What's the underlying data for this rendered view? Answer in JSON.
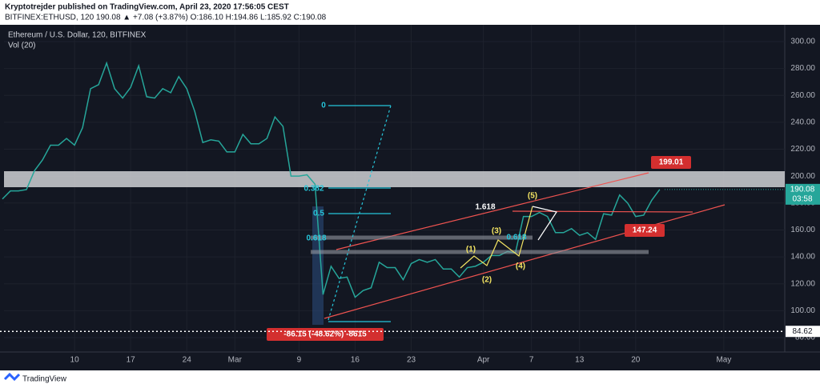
{
  "header": {
    "publisher": "Kryptotrejder published on TradingView.com, April 23, 2020 17:56:05 CEST",
    "symbol_line": "BITFINEX:ETHUSD, 120 190.08 ▲ +7.08 (+3.87%) O:186.10 H:194.86 L:185.92 C:190.08"
  },
  "chart_data": {
    "type": "line",
    "title": "Ethereum / U.S. Dollar, 120, BITFINEX",
    "subtitle": "Vol (20)",
    "categories": [
      null,
      null,
      null,
      null,
      null,
      null,
      null,
      null,
      null,
      "10",
      null,
      null,
      null,
      null,
      null,
      null,
      "17",
      null,
      null,
      null,
      null,
      null,
      null,
      "24",
      null,
      null,
      null,
      null,
      null,
      "Mar",
      null,
      null,
      null,
      null,
      null,
      null,
      null,
      "9",
      null,
      null,
      null,
      null,
      null,
      null,
      "16",
      null,
      null,
      null,
      null,
      null,
      null,
      "23",
      null,
      null,
      null,
      null,
      null,
      null,
      null,
      null,
      "Apr",
      null,
      null,
      null,
      null,
      null,
      "7",
      null,
      null,
      null,
      null,
      null,
      "13",
      null,
      null,
      null,
      null,
      null,
      null,
      "20",
      null,
      null,
      null,
      null,
      null,
      null,
      null,
      null,
      null,
      null,
      "May",
      null
    ],
    "series": [
      {
        "name": "ETHUSD",
        "color": "#26a69a",
        "values": [
          183,
          189,
          189,
          190,
          204,
          212,
          223,
          223,
          228,
          223,
          236,
          265,
          268,
          284,
          265,
          258,
          266,
          282,
          259,
          258,
          265,
          262,
          274,
          265,
          248,
          225,
          227,
          226,
          218,
          218,
          231,
          224,
          224,
          228,
          244,
          237,
          200,
          200,
          201,
          194,
          112,
          133,
          124,
          125,
          110,
          115,
          117,
          136,
          132,
          132,
          123,
          135,
          138,
          136,
          138,
          131,
          131,
          125,
          132,
          133,
          136,
          141,
          141,
          144,
          143,
          170,
          170,
          173,
          170,
          158,
          158,
          161,
          156,
          158,
          153,
          172,
          171,
          186,
          180,
          170,
          171,
          182,
          190.08,
          null,
          null,
          null,
          null,
          null,
          null,
          null,
          null,
          null
        ]
      }
    ],
    "ylim": [
      69.3,
      308.3
    ],
    "yticks": [
      {
        "value": 80,
        "label": "80.00"
      },
      {
        "value": 100,
        "label": "100.00"
      },
      {
        "value": 120,
        "label": "120.00"
      },
      {
        "value": 140,
        "label": "140.00"
      },
      {
        "value": 160,
        "label": "160.00"
      },
      {
        "value": 180,
        "label": "180.00"
      },
      {
        "value": 200,
        "label": "200.00"
      },
      {
        "value": 220,
        "label": "220.00"
      },
      {
        "value": 240,
        "label": "240.00"
      },
      {
        "value": 260,
        "label": "260.00"
      },
      {
        "value": 280,
        "label": "280.00"
      },
      {
        "value": 300,
        "label": "300.00"
      }
    ],
    "grid": true,
    "last_price": {
      "value": 190.08,
      "label": "190.08",
      "countdown": "03:58"
    },
    "low_line": {
      "value": 84.62,
      "label": "84.62"
    },
    "annotations": [
      {
        "text": "199.01"
      },
      {
        "text": "147.24"
      },
      {
        "text": "-86.15 (-48.62%) -8615"
      },
      {
        "text": "0"
      },
      {
        "text": "0.382"
      },
      {
        "text": "0.5"
      },
      {
        "text": "0.618"
      },
      {
        "text": "1.618"
      },
      {
        "text": "0.618"
      },
      {
        "text": "(1)"
      },
      {
        "text": "(2)"
      },
      {
        "text": "(3)"
      },
      {
        "text": "(4)"
      },
      {
        "text": "(5)"
      }
    ]
  },
  "footer": {
    "brand": "TradingView"
  }
}
